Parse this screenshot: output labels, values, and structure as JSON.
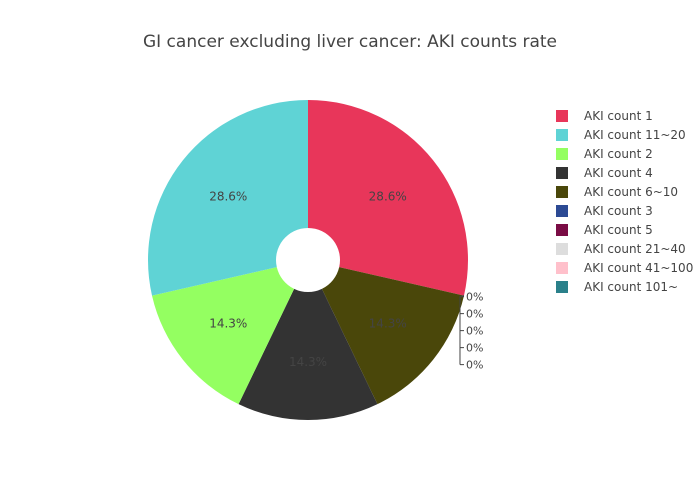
{
  "chart_data": {
    "type": "pie",
    "title": "GI cancer excluding liver cancer: AKI counts rate",
    "hole": true,
    "direction": "clockwise",
    "start": "top",
    "slices": [
      {
        "label": "AKI count 1",
        "value": 28.6,
        "text": "28.6%",
        "color": "#e8365a",
        "text_color": "#444444"
      },
      {
        "label": "AKI count 11~20",
        "value": 28.6,
        "text": "28.6%",
        "color": "#5fd3d5",
        "text_color": "#444444"
      },
      {
        "label": "AKI count 2",
        "value": 14.3,
        "text": "14.3%",
        "color": "#94ff61",
        "text_color": "#444444"
      },
      {
        "label": "AKI count 4",
        "value": 14.3,
        "text": "14.3%",
        "color": "#333333",
        "text_color": "#444444"
      },
      {
        "label": "AKI count 6~10",
        "value": 14.3,
        "text": "14.3%",
        "color": "#4a470a",
        "text_color": "#444444"
      },
      {
        "label": "AKI count 3",
        "value": 0,
        "text": "0%",
        "color": "#2c4a94",
        "text_color": "#444444"
      },
      {
        "label": "AKI count 5",
        "value": 0,
        "text": "0%",
        "color": "#7a0c45",
        "text_color": "#444444"
      },
      {
        "label": "AKI count 21~40",
        "value": 0,
        "text": "0%",
        "color": "#dddddd",
        "text_color": "#444444"
      },
      {
        "label": "AKI count 41~100",
        "value": 0,
        "text": "0%",
        "color": "#ffc0cb",
        "text_color": "#444444"
      },
      {
        "label": "AKI count 101~",
        "value": 0,
        "text": "0%",
        "color": "#2a808a",
        "text_color": "#444444"
      }
    ],
    "slice_order": [
      "AKI count 1",
      "AKI count 6~10",
      "AKI count 4",
      "AKI count 2",
      "AKI count 11~20"
    ],
    "zero_labels": [
      "0%",
      "0%",
      "0%",
      "0%",
      "0%"
    ],
    "legend_position": "right"
  }
}
